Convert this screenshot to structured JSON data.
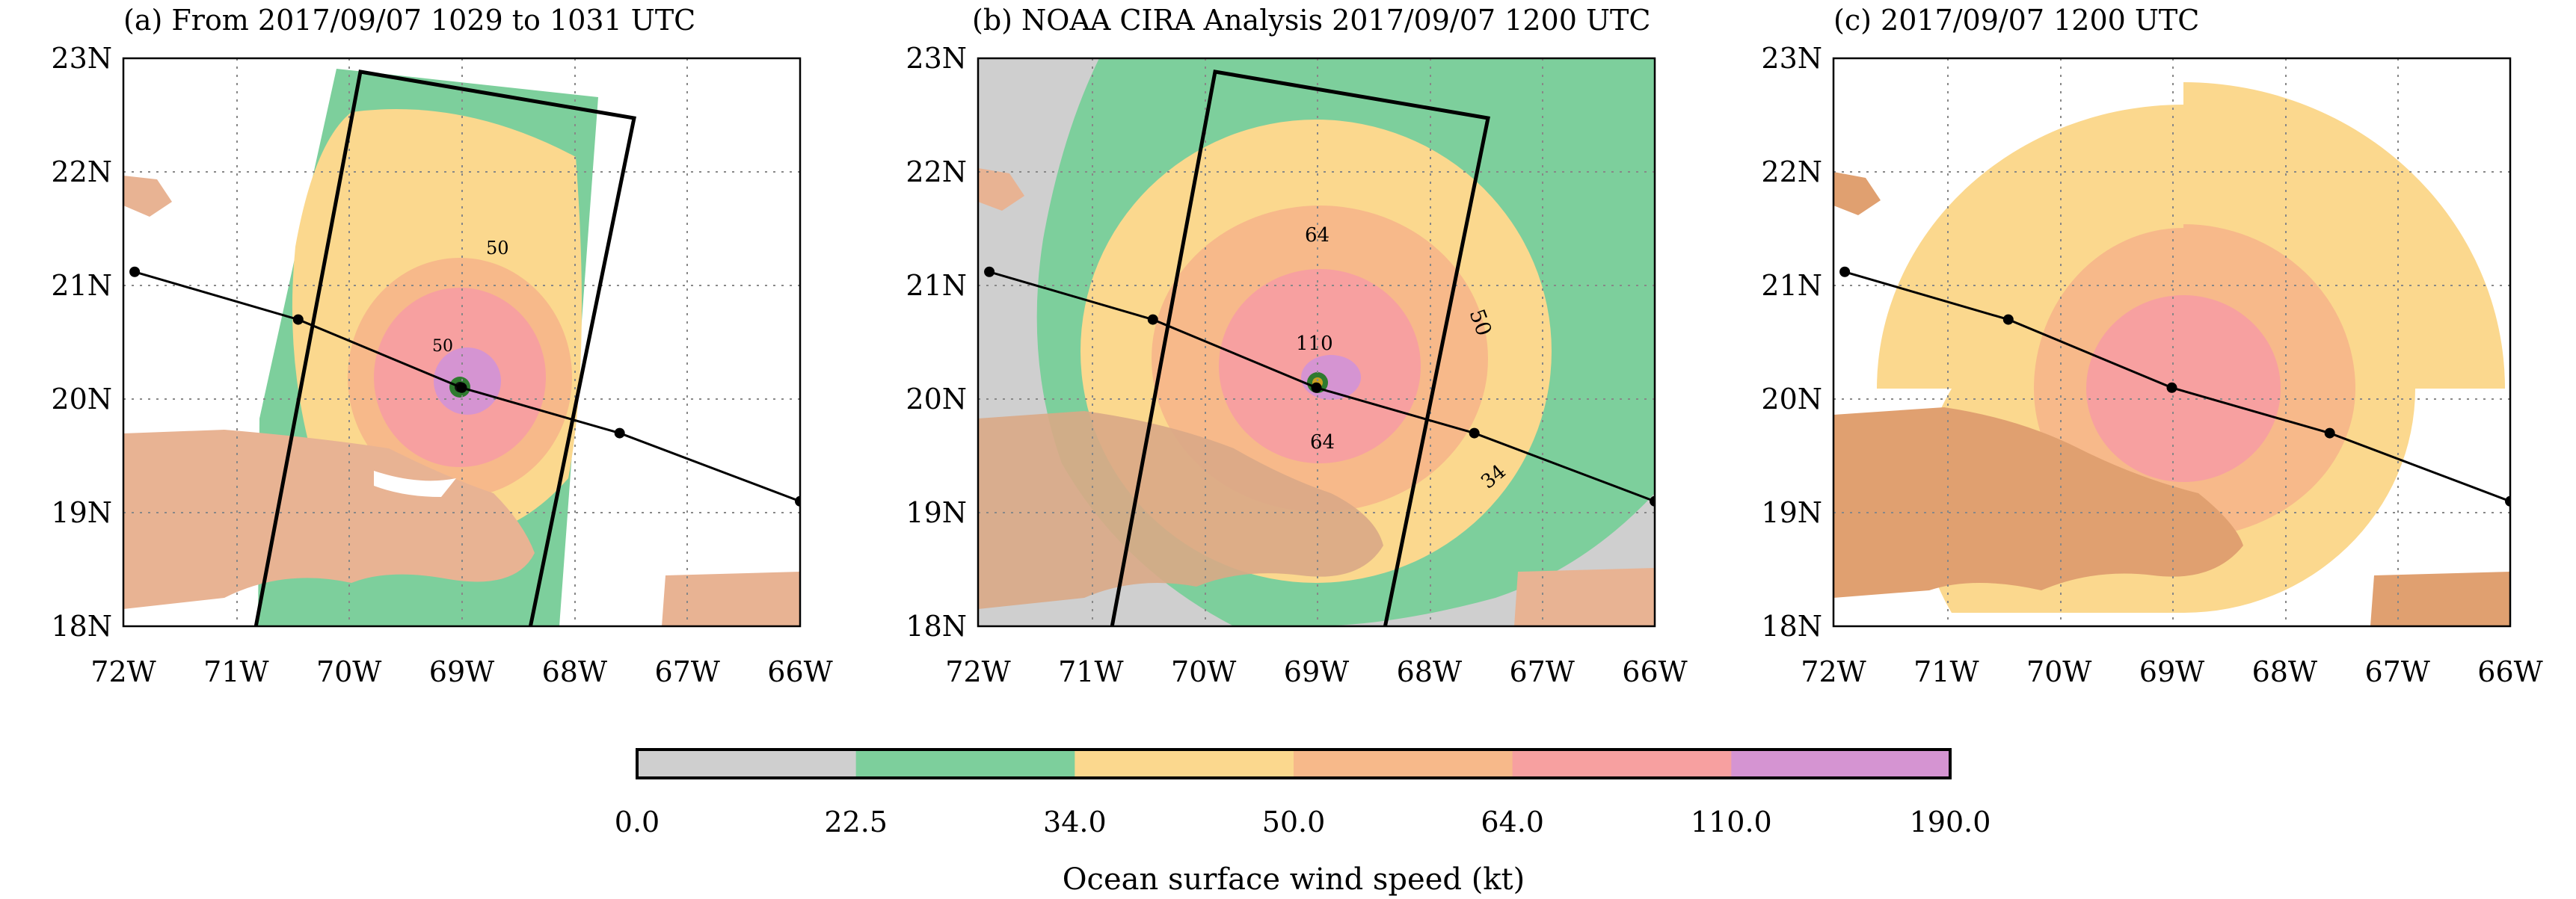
{
  "panels": [
    {
      "id": "a",
      "title": "(a) From 2017/09/07 1029 to 1031 UTC",
      "contour_labels": [
        "50",
        "50"
      ]
    },
    {
      "id": "b",
      "title": "(b) NOAA CIRA Analysis 2017/09/07 1200 UTC",
      "contour_labels": [
        "64",
        "110",
        "64",
        "50",
        "34"
      ]
    },
    {
      "id": "c",
      "title": "(c) 2017/09/07 1200 UTC",
      "contour_labels": []
    }
  ],
  "axes": {
    "lat_ticks": [
      "23N",
      "22N",
      "21N",
      "20N",
      "19N",
      "18N"
    ],
    "lon_ticks": [
      "72W",
      "71W",
      "70W",
      "69W",
      "68W",
      "67W",
      "66W"
    ],
    "lat_range": [
      18,
      23
    ],
    "lon_range": [
      -72,
      -66
    ],
    "grid": "dotted"
  },
  "colorbar": {
    "title": "Ocean surface wind speed (kt)",
    "ticks": [
      "0.0",
      "22.5",
      "34.0",
      "50.0",
      "64.0",
      "110.0",
      "190.0"
    ],
    "bins": [
      {
        "from": 0.0,
        "to": 22.5,
        "color": "#cfcfcf"
      },
      {
        "from": 22.5,
        "to": 34.0,
        "color": "#7dcf9c"
      },
      {
        "from": 34.0,
        "to": 50.0,
        "color": "#fbd88e"
      },
      {
        "from": 50.0,
        "to": 64.0,
        "color": "#f7b98a"
      },
      {
        "from": 64.0,
        "to": 110.0,
        "color": "#f7a0a0"
      },
      {
        "from": 110.0,
        "to": 190.0,
        "color": "#d594d2"
      }
    ]
  },
  "colors": {
    "land": "#e8b393",
    "land_c": "#e0a070",
    "grey": "#cfcfcf",
    "green": "#7dcf9c",
    "yellow": "#fbd88e",
    "orange": "#f7b98a",
    "red": "#f7a0a0",
    "purple": "#d594d2"
  },
  "track_points": [
    {
      "lon": -71.9,
      "lat": 21.12
    },
    {
      "lon": -70.45,
      "lat": 20.7
    },
    {
      "lon": -69.0,
      "lat": 20.1
    },
    {
      "lon": -67.6,
      "lat": 19.7
    },
    {
      "lon": -66.0,
      "lat": 19.1
    }
  ]
}
